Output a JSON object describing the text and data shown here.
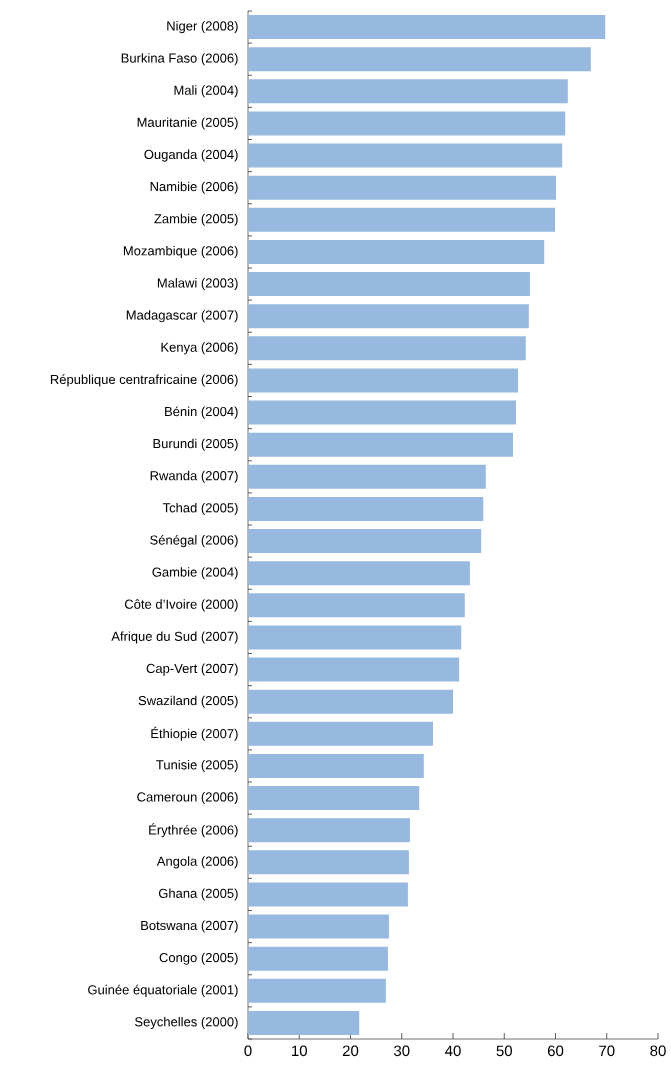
{
  "chart_data": {
    "type": "bar",
    "orientation": "horizontal",
    "color": "#97b9df",
    "categories": [
      "Niger (2008)",
      "Burkina Faso (2006)",
      "Mali (2004)",
      "Mauritanie (2005)",
      "Ouganda (2004)",
      "Namibie (2006)",
      "Zambie (2005)",
      "Mozambique (2006)",
      "Malawi (2003)",
      "Madagascar (2007)",
      "Kenya (2006)",
      "République centrafricaine (2006)",
      "Bénin (2004)",
      "Burundi (2005)",
      "Rwanda (2007)",
      "Tchad (2005)",
      "Sénégal (2006)",
      "Gambie (2004)",
      "Côte d’Ivoire (2000)",
      "Afrique du Sud (2007)",
      "Cap-Vert (2007)",
      "Swaziland (2005)",
      "Éthiopie (2007)",
      "Tunisie (2005)",
      "Cameroun (2006)",
      "Érythrée (2006)",
      "Angola (2006)",
      "Ghana (2005)",
      "Botswana (2007)",
      "Congo (2005)",
      "Guinée équatoriale (2001)",
      "Seychelles (2000)"
    ],
    "values": [
      69.7,
      66.9,
      62.4,
      61.9,
      61.3,
      60.1,
      59.9,
      57.8,
      55.0,
      54.8,
      54.2,
      52.7,
      52.3,
      51.7,
      46.4,
      45.9,
      45.5,
      43.3,
      42.3,
      41.6,
      41.2,
      40.0,
      36.1,
      34.3,
      33.4,
      31.6,
      31.4,
      31.2,
      27.5,
      27.3,
      26.9,
      21.7
    ],
    "xlim": [
      0,
      80
    ],
    "xticks": [
      0,
      10,
      20,
      30,
      40,
      50,
      60,
      70,
      80
    ]
  }
}
